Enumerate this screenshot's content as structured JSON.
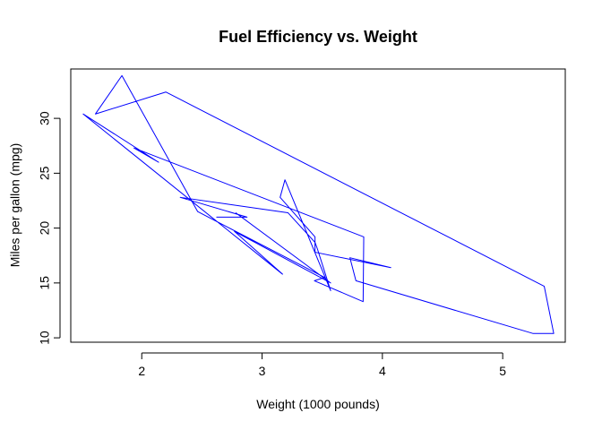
{
  "chart_data": {
    "type": "line",
    "title": "Fuel Efficiency vs. Weight",
    "xlabel": "Weight (1000 pounds)",
    "ylabel": "Miles per gallon (mpg)",
    "xlim": [
      1.41,
      5.52
    ],
    "ylim": [
      9.6,
      34.5
    ],
    "xticks": [
      2,
      3,
      4,
      5
    ],
    "yticks": [
      10,
      15,
      20,
      25,
      30
    ],
    "grid": false,
    "legend": "none",
    "line_color": "#0000ff",
    "series": [
      {
        "x": [
          2.62,
          2.875,
          2.32,
          3.215,
          3.44,
          3.46,
          3.57,
          3.19,
          3.15,
          3.44,
          3.44,
          4.07,
          3.73,
          3.78,
          5.25,
          5.424,
          5.345,
          2.2,
          1.615,
          1.835,
          2.465,
          3.52,
          3.435,
          3.84,
          3.845,
          1.935,
          2.14,
          1.513,
          3.17,
          2.77,
          3.57,
          2.78
        ],
        "y": [
          21.0,
          21.0,
          22.8,
          21.4,
          18.7,
          18.1,
          14.3,
          24.4,
          22.8,
          19.2,
          17.8,
          16.4,
          17.3,
          15.2,
          10.4,
          10.4,
          14.7,
          32.4,
          30.4,
          33.9,
          21.5,
          15.5,
          15.2,
          13.3,
          19.2,
          27.3,
          26.0,
          30.4,
          15.8,
          19.7,
          15.0,
          21.4
        ]
      }
    ]
  }
}
